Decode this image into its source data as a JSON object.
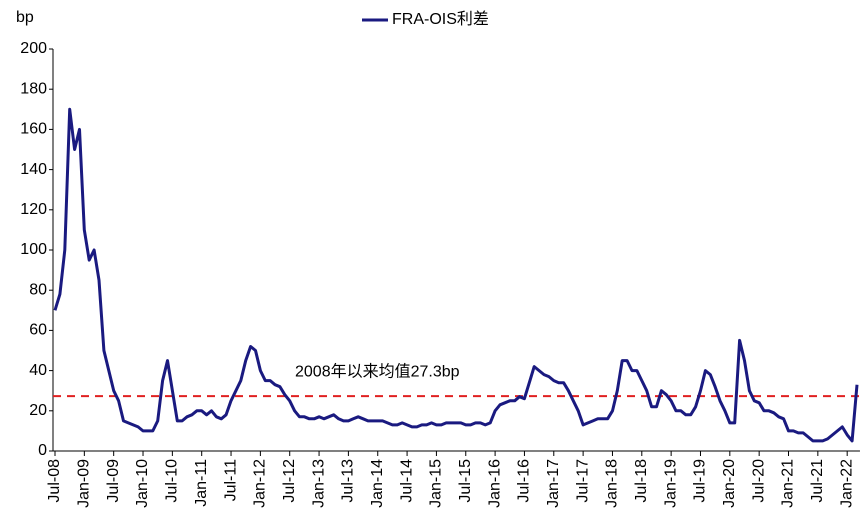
{
  "chart_data": {
    "type": "line",
    "y_label": "bp",
    "categories": [
      "Jul-08",
      null,
      null,
      null,
      null,
      null,
      "Jan-09",
      null,
      null,
      null,
      null,
      null,
      "Jul-09",
      null,
      null,
      null,
      null,
      null,
      "Jan-10",
      null,
      null,
      null,
      null,
      null,
      "Jul-10",
      null,
      null,
      null,
      null,
      null,
      "Jan-11",
      null,
      null,
      null,
      null,
      null,
      "Jul-11",
      null,
      null,
      null,
      null,
      null,
      "Jan-12",
      null,
      null,
      null,
      null,
      null,
      "Jul-12",
      null,
      null,
      null,
      null,
      null,
      "Jan-13",
      null,
      null,
      null,
      null,
      null,
      "Jul-13",
      null,
      null,
      null,
      null,
      null,
      "Jan-14",
      null,
      null,
      null,
      null,
      null,
      "Jul-14",
      null,
      null,
      null,
      null,
      null,
      "Jan-15",
      null,
      null,
      null,
      null,
      null,
      "Jul-15",
      null,
      null,
      null,
      null,
      null,
      "Jan-16",
      null,
      null,
      null,
      null,
      null,
      "Jul-16",
      null,
      null,
      null,
      null,
      null,
      "Jan-17",
      null,
      null,
      null,
      null,
      null,
      "Jul-17",
      null,
      null,
      null,
      null,
      null,
      "Jan-18",
      null,
      null,
      null,
      null,
      null,
      "Jul-18",
      null,
      null,
      null,
      null,
      null,
      "Jan-19",
      null,
      null,
      null,
      null,
      null,
      "Jul-19",
      null,
      null,
      null,
      null,
      null,
      "Jan-20",
      null,
      null,
      null,
      null,
      null,
      "Jul-20",
      null,
      null,
      null,
      null,
      null,
      "Jan-21",
      null,
      null,
      null,
      null,
      null,
      "Jul-21",
      null,
      null,
      null,
      null,
      null,
      "Jan-22",
      null,
      null
    ],
    "series": [
      {
        "name": "FRA-OIS利差",
        "color": "#1a1a80",
        "values": [
          70,
          78,
          100,
          170,
          150,
          160,
          110,
          95,
          100,
          85,
          50,
          40,
          30,
          25,
          15,
          14,
          13,
          12,
          10,
          10,
          10,
          15,
          35,
          45,
          30,
          15,
          15,
          17,
          18,
          20,
          20,
          18,
          20,
          17,
          16,
          18,
          25,
          30,
          35,
          45,
          52,
          50,
          40,
          35,
          35,
          33,
          32,
          28,
          25,
          20,
          17,
          17,
          16,
          16,
          17,
          16,
          17,
          18,
          16,
          15,
          15,
          16,
          17,
          16,
          15,
          15,
          15,
          15,
          14,
          13,
          13,
          14,
          13,
          12,
          12,
          13,
          13,
          14,
          13,
          13,
          14,
          14,
          14,
          14,
          13,
          13,
          14,
          14,
          13,
          14,
          20,
          23,
          24,
          25,
          25,
          27,
          26,
          34,
          42,
          40,
          38,
          37,
          35,
          34,
          34,
          30,
          25,
          20,
          13,
          14,
          15,
          16,
          16,
          16,
          20,
          30,
          45,
          45,
          40,
          40,
          35,
          30,
          22,
          22,
          30,
          28,
          25,
          20,
          20,
          18,
          18,
          22,
          30,
          40,
          38,
          32,
          25,
          20,
          14,
          14,
          55,
          45,
          30,
          25,
          24,
          20,
          20,
          19,
          17,
          16,
          10,
          10,
          9,
          9,
          7,
          5,
          5,
          5,
          6,
          8,
          10,
          12,
          8,
          5,
          33
        ]
      }
    ],
    "mean_line": {
      "value": 27.3,
      "color": "#e02020",
      "label": "2008年以来均值27.3bp"
    },
    "ylim": [
      0,
      200
    ],
    "yticks": [
      0,
      20,
      40,
      60,
      80,
      100,
      120,
      140,
      160,
      180,
      200
    ],
    "grid": false,
    "legend": "top"
  }
}
